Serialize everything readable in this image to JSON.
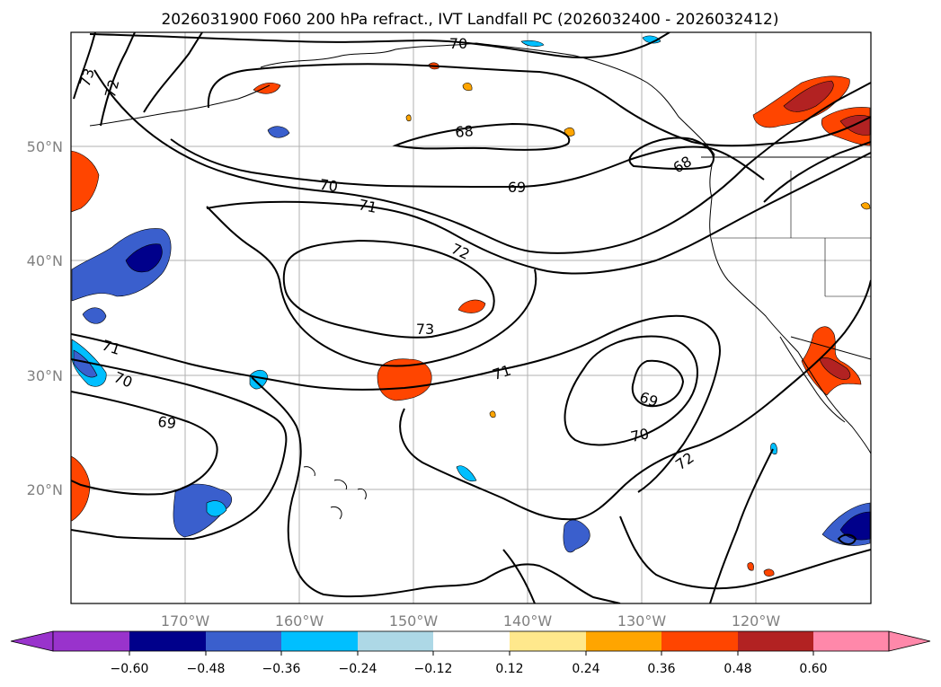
{
  "title": "2026031900 F060 200 hPa refract., IVT Landfall PC (2026032400 - 2026032412)",
  "map": {
    "lat_ticks": [
      "50°N",
      "40°N",
      "30°N",
      "20°N"
    ],
    "lon_ticks": [
      "170°W",
      "160°W",
      "150°W",
      "140°W",
      "130°W",
      "120°W"
    ],
    "extent": {
      "lon": [
        -180,
        -110
      ],
      "lat": [
        10,
        60
      ]
    },
    "gridlines": true
  },
  "contours": {
    "field": "200 hPa refractivity",
    "color": "#000000",
    "labels": [
      "70",
      "73",
      "72",
      "68",
      "69",
      "68",
      "70",
      "71",
      "72",
      "73",
      "71",
      "70",
      "69",
      "71",
      "69",
      "70",
      "72"
    ]
  },
  "shading": {
    "field": "IVT Landfall PC",
    "colorbar": {
      "ticks": [
        "−0.60",
        "−0.48",
        "−0.36",
        "−0.24",
        "−0.12",
        "0.12",
        "0.24",
        "0.36",
        "0.48",
        "0.60"
      ],
      "colors": [
        "#9933cc",
        "#00008b",
        "#3a5fcd",
        "#00bfff",
        "#add8e6",
        "#ffffff",
        "#ffe88c",
        "#ffa500",
        "#ff4500",
        "#b22222",
        "#ff88aa"
      ],
      "extend": "both"
    }
  }
}
